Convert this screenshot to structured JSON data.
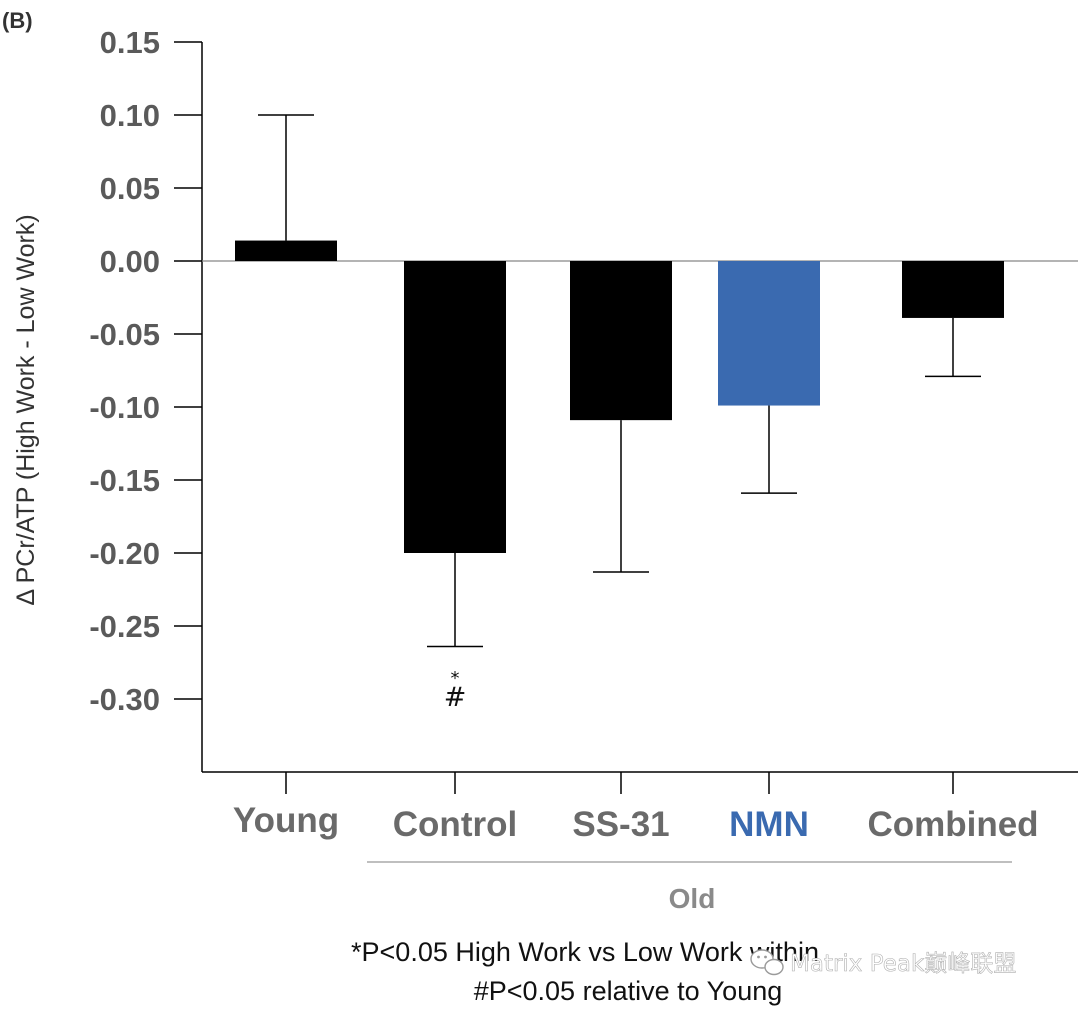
{
  "panel_label": "(B)",
  "chart_data": {
    "type": "bar",
    "ylabel": "Δ PCr/ATP (High Work - Low Work)",
    "ylim": [
      -0.35,
      0.15
    ],
    "yticks": [
      0.15,
      0.1,
      0.05,
      0.0,
      -0.05,
      -0.1,
      -0.15,
      -0.2,
      -0.25,
      -0.3
    ],
    "ytick_labels": [
      "0.15",
      "0.10",
      "0.05",
      "0.00",
      "-0.05",
      "-0.10",
      "-0.15",
      "-0.20",
      "-0.25",
      "-0.30"
    ],
    "categories": [
      "Young",
      "Control",
      "SS-31",
      "NMN",
      "Combined"
    ],
    "values": [
      0.014,
      -0.2,
      -0.109,
      -0.099,
      -0.039
    ],
    "error_bars": [
      0.1,
      -0.264,
      -0.213,
      -0.159,
      -0.079
    ],
    "colors": [
      "#000000",
      "#000000",
      "#000000",
      "#3a6ab0",
      "#000000"
    ],
    "label_colors": [
      "#6a6a6a",
      "#6a6a6a",
      "#6a6a6a",
      "#3a6ab0",
      "#6a6a6a"
    ],
    "group_label": "Old",
    "annotations": [
      {
        "category": "Control",
        "star": "*",
        "hash": "#"
      }
    ],
    "footnotes": [
      "*P<0.05 High Work vs Low Work within",
      "#P<0.05 relative to Young"
    ],
    "grid": false,
    "legend": "none"
  },
  "watermark": {
    "icon": "wechat-icon",
    "text": "Matrix Peak巅峰联盟"
  }
}
